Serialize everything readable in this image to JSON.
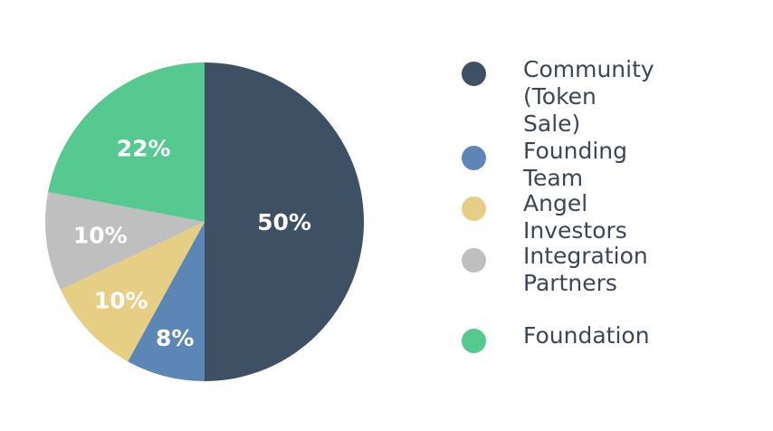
{
  "chart_data": {
    "type": "pie",
    "series": [
      {
        "label": "Community\n(Token Sale)",
        "value": 50,
        "display": "50%",
        "color": "#3e5064"
      },
      {
        "label": "Founding Team",
        "value": 8,
        "display": "8%",
        "color": "#5b86b6"
      },
      {
        "label": "Angel Investors",
        "value": 10,
        "display": "10%",
        "color": "#e6cf85"
      },
      {
        "label": "Integration\nPartners",
        "value": 10,
        "display": "10%",
        "color": "#bfbfbf"
      },
      {
        "label": "Foundation",
        "value": 22,
        "display": "22%",
        "color": "#55c990"
      }
    ],
    "legend_position": "right"
  }
}
